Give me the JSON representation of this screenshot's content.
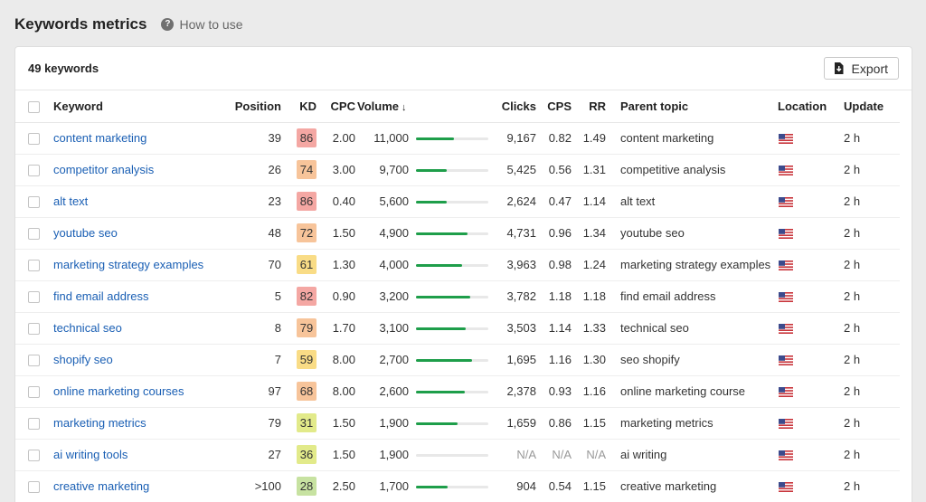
{
  "header": {
    "title": "Keywords metrics",
    "help_icon": "question-circle-icon",
    "help_label": "How to use"
  },
  "toolbar": {
    "count_label": "49 keywords",
    "export_label": "Export",
    "export_icon": "download-icon"
  },
  "table": {
    "columns": {
      "keyword": "Keyword",
      "position": "Position",
      "kd": "KD",
      "cpc": "CPC",
      "volume": "Volume",
      "volume_sort": "↓",
      "clicks": "Clicks",
      "cps": "CPS",
      "rr": "RR",
      "parent_topic": "Parent topic",
      "location": "Location",
      "update": "Update"
    },
    "kd_colors": {
      "red": "#f4a7a3",
      "orange": "#f7c49a",
      "yellow": "#f9dc86",
      "lime": "#e2ea8a",
      "green": "#c7e2a1"
    },
    "bar_color": "#1e9e4a",
    "rows": [
      {
        "keyword": "content marketing",
        "position": "39",
        "kd": "86",
        "kd_color": "#f4a7a3",
        "cpc": "2.00",
        "volume": "11,000",
        "volume_fraction": 0.52,
        "clicks": "9,167",
        "cps": "0.82",
        "rr": "1.49",
        "parent_topic": "content marketing",
        "location": "us-flag-icon",
        "update": "2 h"
      },
      {
        "keyword": "competitor analysis",
        "position": "26",
        "kd": "74",
        "kd_color": "#f7c49a",
        "cpc": "3.00",
        "volume": "9,700",
        "volume_fraction": 0.42,
        "clicks": "5,425",
        "cps": "0.56",
        "rr": "1.31",
        "parent_topic": "competitive analysis",
        "location": "us-flag-icon",
        "update": "2 h"
      },
      {
        "keyword": "alt text",
        "position": "23",
        "kd": "86",
        "kd_color": "#f4a7a3",
        "cpc": "0.40",
        "volume": "5,600",
        "volume_fraction": 0.42,
        "clicks": "2,624",
        "cps": "0.47",
        "rr": "1.14",
        "parent_topic": "alt text",
        "location": "us-flag-icon",
        "update": "2 h"
      },
      {
        "keyword": "youtube seo",
        "position": "48",
        "kd": "72",
        "kd_color": "#f7c49a",
        "cpc": "1.50",
        "volume": "4,900",
        "volume_fraction": 0.71,
        "clicks": "4,731",
        "cps": "0.96",
        "rr": "1.34",
        "parent_topic": "youtube seo",
        "location": "us-flag-icon",
        "update": "2 h"
      },
      {
        "keyword": "marketing strategy examples",
        "position": "70",
        "kd": "61",
        "kd_color": "#f9dc86",
        "cpc": "1.30",
        "volume": "4,000",
        "volume_fraction": 0.64,
        "clicks": "3,963",
        "cps": "0.98",
        "rr": "1.24",
        "parent_topic": "marketing strategy examples",
        "location": "us-flag-icon",
        "update": "2 h"
      },
      {
        "keyword": "find email address",
        "position": "5",
        "kd": "82",
        "kd_color": "#f4a7a3",
        "cpc": "0.90",
        "volume": "3,200",
        "volume_fraction": 0.75,
        "clicks": "3,782",
        "cps": "1.18",
        "rr": "1.18",
        "parent_topic": "find email address",
        "location": "us-flag-icon",
        "update": "2 h"
      },
      {
        "keyword": "technical seo",
        "position": "8",
        "kd": "79",
        "kd_color": "#f7c49a",
        "cpc": "1.70",
        "volume": "3,100",
        "volume_fraction": 0.69,
        "clicks": "3,503",
        "cps": "1.14",
        "rr": "1.33",
        "parent_topic": "technical seo",
        "location": "us-flag-icon",
        "update": "2 h"
      },
      {
        "keyword": "shopify seo",
        "position": "7",
        "kd": "59",
        "kd_color": "#f9dc86",
        "cpc": "8.00",
        "volume": "2,700",
        "volume_fraction": 0.78,
        "clicks": "1,695",
        "cps": "1.16",
        "rr": "1.30",
        "parent_topic": "seo shopify",
        "location": "us-flag-icon",
        "update": "2 h"
      },
      {
        "keyword": "online marketing courses",
        "position": "97",
        "kd": "68",
        "kd_color": "#f7c49a",
        "cpc": "8.00",
        "volume": "2,600",
        "volume_fraction": 0.68,
        "clicks": "2,378",
        "cps": "0.93",
        "rr": "1.16",
        "parent_topic": "online marketing course",
        "location": "us-flag-icon",
        "update": "2 h"
      },
      {
        "keyword": "marketing metrics",
        "position": "79",
        "kd": "31",
        "kd_color": "#e2ea8a",
        "cpc": "1.50",
        "volume": "1,900",
        "volume_fraction": 0.57,
        "clicks": "1,659",
        "cps": "0.86",
        "rr": "1.15",
        "parent_topic": "marketing metrics",
        "location": "us-flag-icon",
        "update": "2 h"
      },
      {
        "keyword": "ai writing tools",
        "position": "27",
        "kd": "36",
        "kd_color": "#e2ea8a",
        "cpc": "1.50",
        "volume": "1,900",
        "volume_fraction": 0,
        "clicks": "N/A",
        "cps": "N/A",
        "rr": "N/A",
        "parent_topic": "ai writing",
        "location": "us-flag-icon",
        "update": "2 h"
      },
      {
        "keyword": "creative marketing",
        "position": ">100",
        "kd": "28",
        "kd_color": "#c7e2a1",
        "cpc": "2.50",
        "volume": "1,700",
        "volume_fraction": 0.44,
        "clicks": "904",
        "cps": "0.54",
        "rr": "1.15",
        "parent_topic": "creative marketing",
        "location": "us-flag-icon",
        "update": "2 h"
      }
    ]
  }
}
